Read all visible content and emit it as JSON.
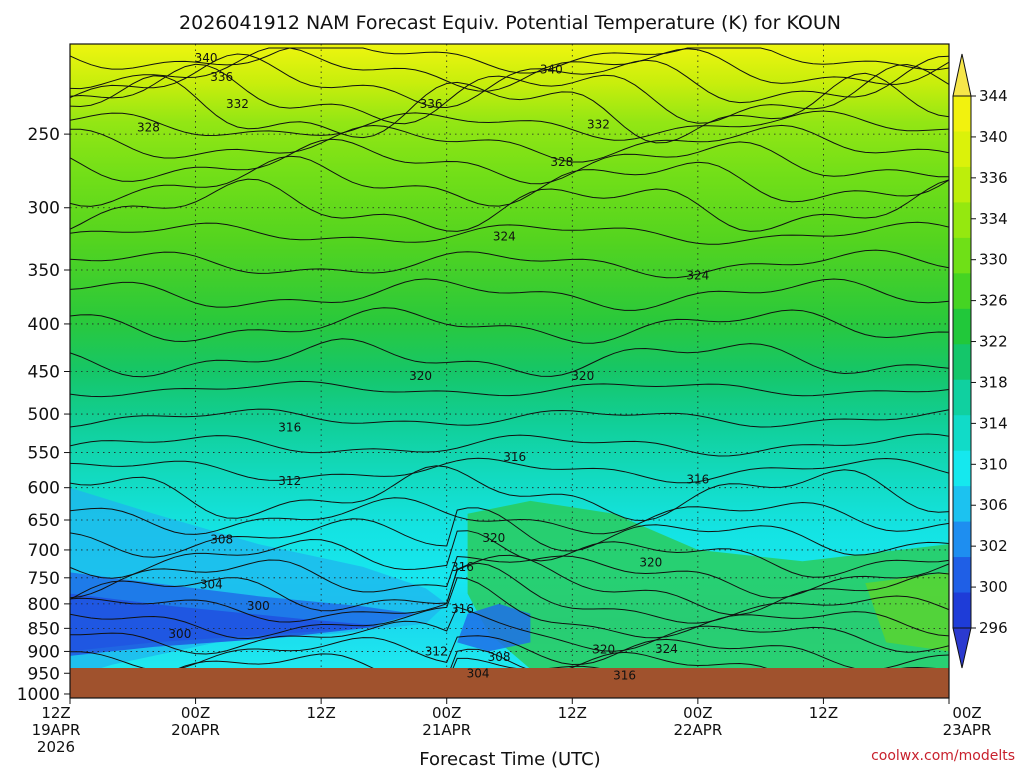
{
  "chart_data": {
    "type": "heatmap",
    "title": "2026041912 NAM Forecast Equiv. Potential Temperature (K) for KOUN",
    "xlabel": "Forecast Time (UTC)",
    "ylabel": "",
    "y_scale": "log-pressure",
    "y_range_hpa": [
      1010,
      200
    ],
    "y_ticks": [
      "250",
      "300",
      "350",
      "400",
      "450",
      "500",
      "550",
      "600",
      "650",
      "700",
      "750",
      "800",
      "850",
      "900",
      "950",
      "1000"
    ],
    "x_ticks": [
      {
        "top": "12Z",
        "mid": "19APR",
        "bot": "2026"
      },
      {
        "top": "00Z",
        "mid": "20APR",
        "bot": ""
      },
      {
        "top": "12Z",
        "mid": "",
        "bot": ""
      },
      {
        "top": "00Z",
        "mid": "21APR",
        "bot": ""
      },
      {
        "top": "12Z",
        "mid": "",
        "bot": ""
      },
      {
        "top": "00Z",
        "mid": "22APR",
        "bot": ""
      },
      {
        "top": "12Z",
        "mid": "",
        "bot": ""
      },
      {
        "top": "00Z",
        "mid": "23APR",
        "bot": ""
      }
    ],
    "colorbar": {
      "labels": [
        "344",
        "340",
        "336",
        "334",
        "330",
        "326",
        "322",
        "318",
        "314",
        "310",
        "306",
        "302",
        "300",
        "296"
      ],
      "colors": [
        "#f2f20e",
        "#dbf20a",
        "#bdee0b",
        "#95e80f",
        "#6fe017",
        "#45d423",
        "#21c83a",
        "#14c66a",
        "#10d0a0",
        "#11dbc8",
        "#15e8ee",
        "#1cc2f0",
        "#1e8ef0",
        "#1f5fe6",
        "#1e3cd8"
      ],
      "arrow_colors": {
        "top": "#f6e64a",
        "bottom": "#2b3ad0"
      },
      "extend": "both"
    },
    "contour_labels": [
      {
        "text": "340",
        "hours": 13.0,
        "p": 207
      },
      {
        "text": "340",
        "hours": 46.0,
        "p": 213
      },
      {
        "text": "336",
        "hours": 14.5,
        "p": 217
      },
      {
        "text": "336",
        "hours": 34.5,
        "p": 232
      },
      {
        "text": "332",
        "hours": 16.0,
        "p": 232
      },
      {
        "text": "332",
        "hours": 50.5,
        "p": 244
      },
      {
        "text": "328",
        "hours": 7.5,
        "p": 246
      },
      {
        "text": "328",
        "hours": 47.0,
        "p": 268
      },
      {
        "text": "324",
        "hours": 41.5,
        "p": 322
      },
      {
        "text": "324",
        "hours": 60.0,
        "p": 355
      },
      {
        "text": "320",
        "hours": 33.5,
        "p": 455
      },
      {
        "text": "320",
        "hours": 49.0,
        "p": 455
      },
      {
        "text": "316",
        "hours": 21.0,
        "p": 517
      },
      {
        "text": "316",
        "hours": 42.5,
        "p": 556
      },
      {
        "text": "316",
        "hours": 60.0,
        "p": 588
      },
      {
        "text": "312",
        "hours": 21.0,
        "p": 590
      },
      {
        "text": "308",
        "hours": 14.5,
        "p": 682
      },
      {
        "text": "304",
        "hours": 13.5,
        "p": 763
      },
      {
        "text": "300",
        "hours": 18.0,
        "p": 804
      },
      {
        "text": "300",
        "hours": 10.5,
        "p": 862
      },
      {
        "text": "320",
        "hours": 40.5,
        "p": 680
      },
      {
        "text": "316",
        "hours": 37.5,
        "p": 730
      },
      {
        "text": "316",
        "hours": 37.5,
        "p": 810
      },
      {
        "text": "320",
        "hours": 55.5,
        "p": 722
      },
      {
        "text": "312",
        "hours": 35.0,
        "p": 900
      },
      {
        "text": "308",
        "hours": 41.0,
        "p": 913
      },
      {
        "text": "304",
        "hours": 39.0,
        "p": 950
      },
      {
        "text": "320",
        "hours": 51.0,
        "p": 896
      },
      {
        "text": "324",
        "hours": 57.0,
        "p": 895
      },
      {
        "text": "316",
        "hours": 53.0,
        "p": 955
      }
    ],
    "ground_color": "#a0522d",
    "credit": "coolwx.com/modelts"
  }
}
